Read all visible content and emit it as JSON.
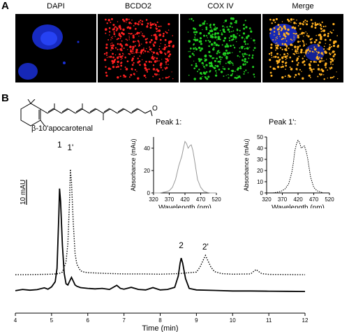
{
  "panel_a": {
    "letter": "A",
    "channels": [
      {
        "label": "DAPI",
        "color": "#1a3cff"
      },
      {
        "label": "BCDO2",
        "color": "#ff2020"
      },
      {
        "label": "COX IV",
        "color": "#20d020"
      },
      {
        "label": "Merge",
        "color": "#ffb020"
      }
    ]
  },
  "panel_b": {
    "letter": "B",
    "compound_label": "β-10'apocarotenal",
    "aldehyde_atom": "O",
    "scale_bar_label": "10 mAU"
  },
  "chart_data": [
    {
      "type": "line",
      "xlabel": "Time (min)",
      "ylabel": "",
      "xlim": [
        4,
        12
      ],
      "xticks": [
        4,
        5,
        6,
        7,
        8,
        9,
        10,
        11,
        12
      ],
      "peak_labels": [
        {
          "text": "1",
          "x": 5.22
        },
        {
          "text": "1'",
          "x": 5.52
        },
        {
          "text": "2",
          "x": 8.58
        },
        {
          "text": "2'",
          "x": 9.25
        }
      ],
      "series": [
        {
          "style": "solid",
          "x": [
            4.0,
            4.2,
            4.4,
            4.6,
            4.8,
            4.9,
            5.0,
            5.1,
            5.15,
            5.2,
            5.22,
            5.25,
            5.3,
            5.35,
            5.4,
            5.45,
            5.5,
            5.55,
            5.6,
            5.65,
            5.7,
            5.8,
            6.0,
            6.2,
            6.4,
            6.6,
            6.8,
            6.9,
            7.0,
            7.2,
            7.4,
            7.6,
            7.8,
            8.0,
            8.2,
            8.4,
            8.5,
            8.55,
            8.58,
            8.62,
            8.7,
            8.8,
            9.0,
            9.5,
            10.0,
            10.5,
            11.0,
            11.5,
            12.0
          ],
          "y": [
            0.3,
            0.8,
            0.5,
            0.7,
            1.4,
            0.9,
            1.8,
            3.8,
            9,
            30,
            40,
            35,
            18,
            7,
            3,
            2.5,
            4,
            5.5,
            4,
            2.5,
            2,
            1.5,
            1.2,
            1.0,
            1.2,
            0.8,
            2.4,
            1.2,
            0.9,
            1.6,
            0.8,
            0.6,
            1.5,
            0.6,
            0.8,
            1.6,
            6,
            11,
            13,
            11,
            5,
            1.2,
            0.6,
            0.4,
            0.2,
            0.2,
            0.1,
            0.05,
            0.0
          ]
        },
        {
          "style": "dotted",
          "x": [
            4.0,
            4.5,
            5.0,
            5.2,
            5.3,
            5.4,
            5.45,
            5.5,
            5.52,
            5.55,
            5.6,
            5.65,
            5.7,
            5.8,
            5.9,
            6.0,
            6.5,
            7.0,
            7.5,
            8.0,
            8.5,
            9.0,
            9.1,
            9.2,
            9.25,
            9.3,
            9.4,
            9.5,
            9.7,
            10.0,
            10.5,
            10.6,
            10.65,
            10.7,
            10.8,
            11.0,
            12.0
          ],
          "y": [
            0.0,
            0.05,
            0.2,
            0.4,
            1,
            5,
            12,
            30,
            41,
            36,
            20,
            8,
            4,
            1.5,
            1.0,
            0.8,
            0.5,
            0.3,
            0.3,
            0.2,
            0.4,
            1,
            3,
            6,
            7.5,
            6,
            3,
            1.2,
            0.4,
            0.2,
            0.3,
            1.5,
            2,
            1.4,
            0.4,
            0.1,
            0.0
          ]
        }
      ]
    },
    {
      "type": "line",
      "title": "Peak 1:",
      "xlabel": "Wavelength (nm)",
      "ylabel": "Absorbance (mAu)",
      "xlim": [
        320,
        520
      ],
      "ylim": [
        0,
        50
      ],
      "xticks": [
        320,
        370,
        420,
        470,
        520
      ],
      "yticks": [
        0,
        20,
        40
      ],
      "series": [
        {
          "style": "solid-gray",
          "x": [
            320,
            340,
            360,
            370,
            380,
            390,
            400,
            410,
            415,
            420,
            425,
            430,
            435,
            440,
            445,
            450,
            460,
            470,
            480,
            490,
            500,
            520
          ],
          "y": [
            0,
            0,
            1,
            2,
            5,
            12,
            24,
            33,
            40,
            46,
            44,
            40,
            42,
            43,
            38,
            30,
            12,
            5,
            1.5,
            0.5,
            0,
            0
          ]
        }
      ]
    },
    {
      "type": "line",
      "title": "Peak 1':",
      "xlabel": "Wavelength (nm)",
      "ylabel": "Absorbance (mAu)",
      "xlim": [
        320,
        520
      ],
      "ylim": [
        0,
        50
      ],
      "xticks": [
        320,
        370,
        420,
        470,
        520
      ],
      "yticks": [
        0,
        10,
        20,
        30,
        40,
        50
      ],
      "series": [
        {
          "style": "dotted",
          "x": [
            320,
            340,
            360,
            370,
            380,
            390,
            400,
            405,
            410,
            415,
            420,
            425,
            430,
            435,
            440,
            445,
            450,
            460,
            470,
            480,
            490,
            500,
            520
          ],
          "y": [
            0,
            0,
            1,
            2,
            4,
            8,
            18,
            27,
            38,
            44,
            47,
            45,
            40,
            41,
            42,
            38,
            32,
            14,
            5,
            2,
            1,
            0,
            0
          ]
        }
      ]
    }
  ]
}
